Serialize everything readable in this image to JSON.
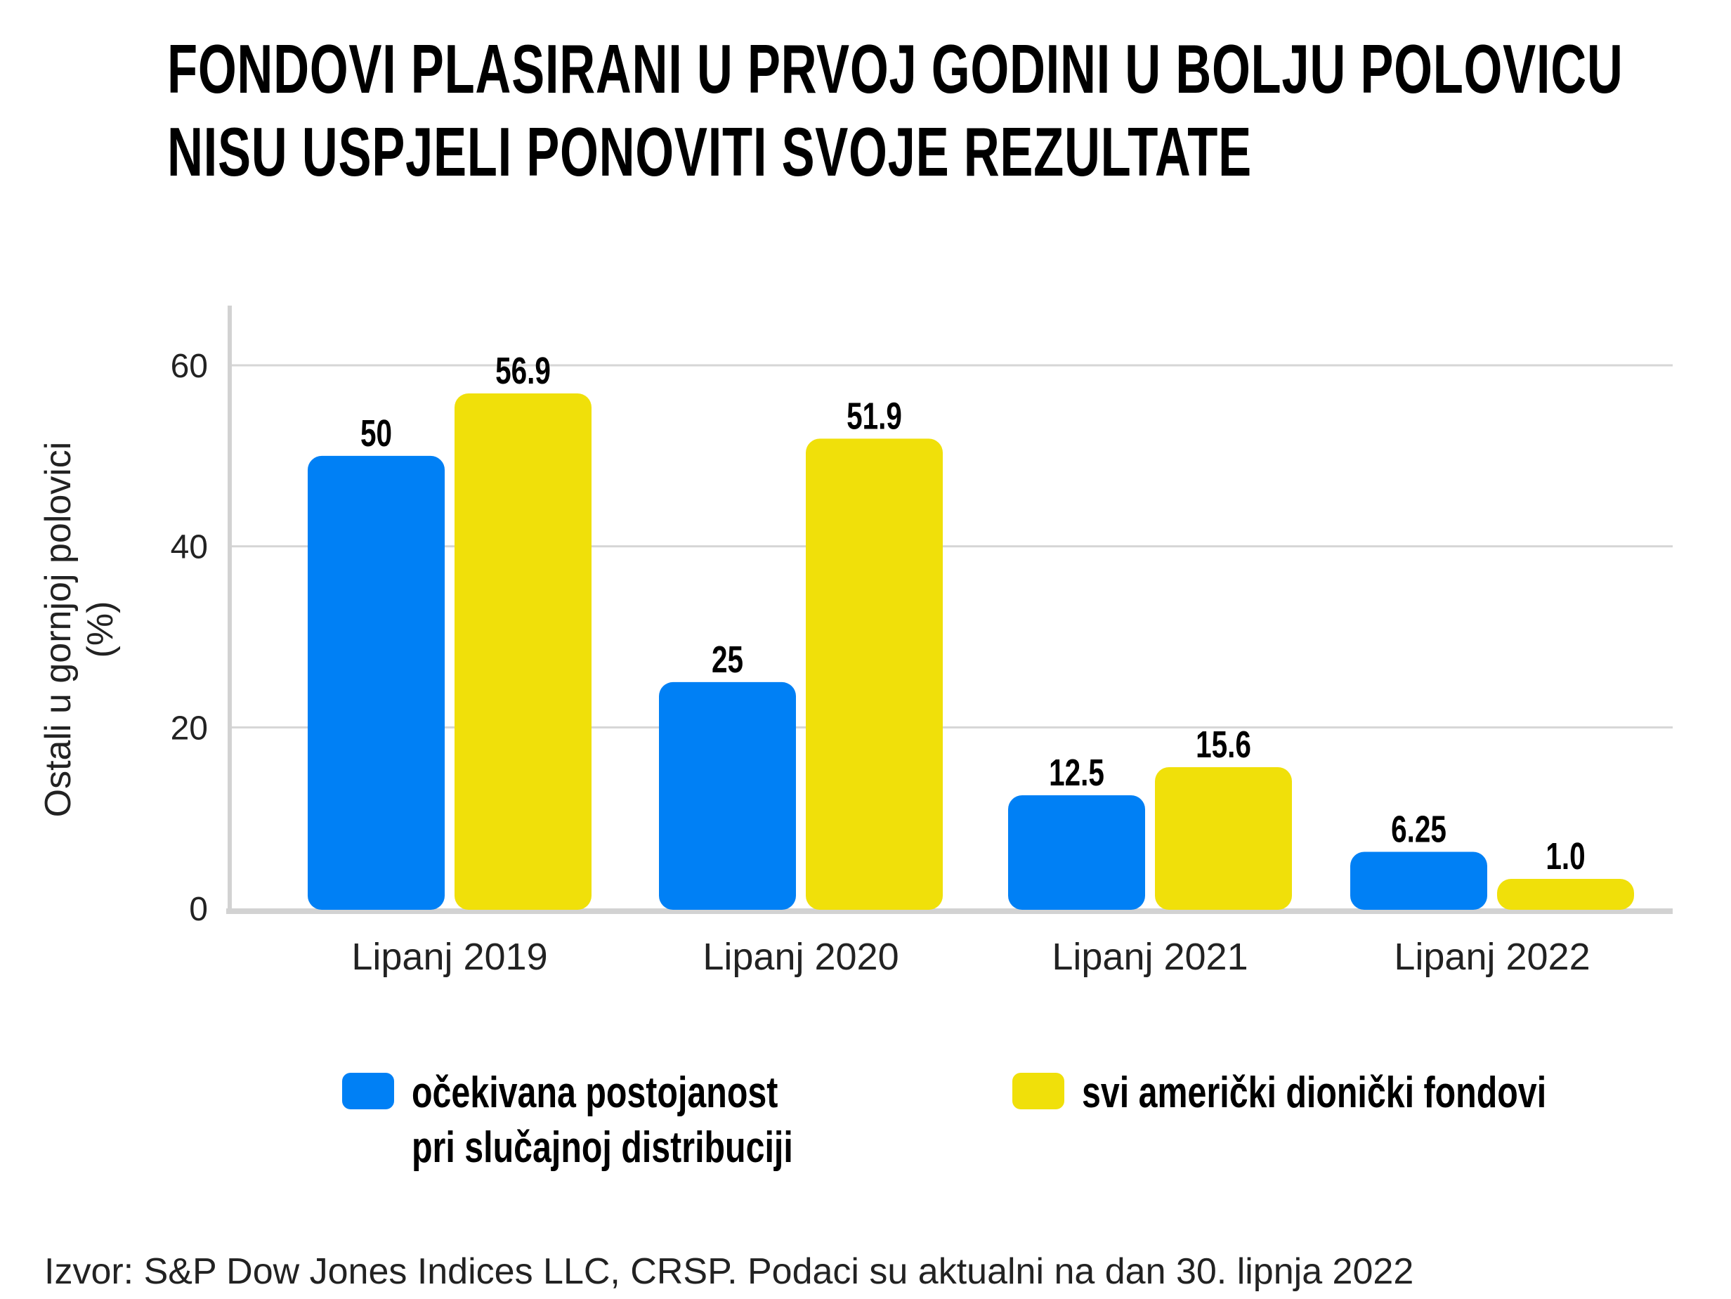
{
  "chart_data": {
    "type": "bar",
    "title": [
      "FONDOVI PLASIRANI U PRVOJ GODINI U BOLJU POLOVICU",
      "NISU USPJELI PONOVITI SVOJE REZULTATE"
    ],
    "ylabel": [
      "Ostali u gornjoj polovici",
      "(%)"
    ],
    "xlabel": "",
    "ylim": [
      0,
      65
    ],
    "yticks": [
      "0",
      "20",
      "40",
      "60"
    ],
    "grid": true,
    "categories": [
      "Lipanj 2019",
      "Lipanj 2020",
      "Lipanj 2021",
      "Lipanj 2022"
    ],
    "series": [
      {
        "name": "očekivana postojanost pri slučajnoj distribuciji",
        "legend_lines": [
          "očekivana postojanost",
          "pri slučajnoj distribuciji"
        ],
        "color": "#0080F5",
        "values": [
          50,
          25,
          12.5,
          6.25
        ],
        "labels": [
          "50",
          "25",
          "12.5",
          "6.25"
        ]
      },
      {
        "name": "svi američki dionički fondovi",
        "legend_lines": [
          "svi američki dionički fondovi"
        ],
        "color": "#F0E00A",
        "values": [
          56.9,
          51.9,
          15.6,
          1.0
        ],
        "labels": [
          "56.9",
          "51.9",
          "15.6",
          "1.0"
        ]
      }
    ],
    "legend_position": "bottom",
    "source": "Izvor: S&P Dow Jones Indices LLC, CRSP. Podaci su aktualni na dan 30. lipnja 2022"
  }
}
